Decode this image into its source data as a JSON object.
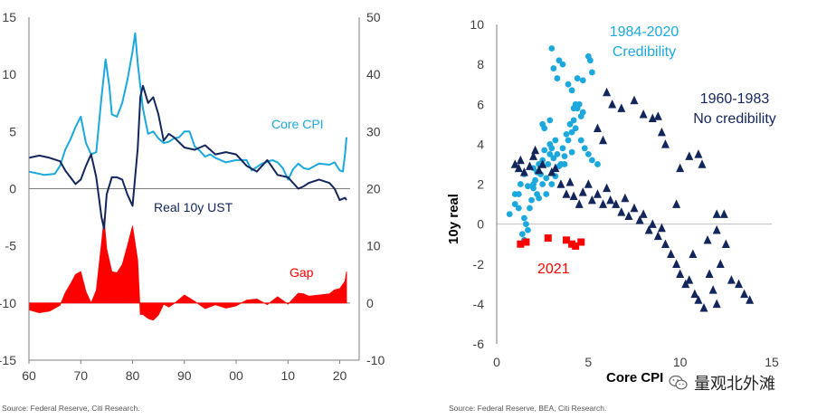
{
  "chart_data": [
    {
      "type": "line",
      "x_ticks": [
        "60",
        "70",
        "80",
        "90",
        "00",
        "10",
        "20"
      ],
      "left_axis": {
        "ticks": [
          15,
          10,
          5,
          0,
          -5,
          -10,
          -15
        ],
        "ylim": [
          -15,
          15
        ]
      },
      "right_axis": {
        "ticks": [
          50,
          40,
          30,
          20,
          10,
          0,
          -10
        ],
        "ylim": [
          -10,
          50
        ]
      },
      "xlim": [
        1960,
        2022
      ],
      "series": [
        {
          "name": "Core CPI",
          "color": "#1ba8dc",
          "axis": "left",
          "x": [
            1960,
            1963,
            1965,
            1966,
            1967,
            1968,
            1969,
            1970,
            1971,
            1972,
            1973,
            1974,
            1974.8,
            1975.5,
            1976,
            1977,
            1978,
            1979,
            1980,
            1980.5,
            1981,
            1982,
            1983,
            1984,
            1985,
            1986,
            1987,
            1988,
            1989,
            1990,
            1991,
            1992,
            1993,
            1994,
            1995,
            1996,
            1998,
            2000,
            2002,
            2003,
            2005,
            2007,
            2008,
            2009,
            2010,
            2011,
            2012,
            2013,
            2014,
            2016,
            2018,
            2019,
            2020,
            2020.6,
            2021,
            2021.3
          ],
          "y": [
            1.5,
            1.2,
            1.3,
            2.0,
            3.4,
            4.3,
            5.4,
            6.3,
            4.0,
            3.0,
            3.2,
            8.0,
            11.3,
            9.0,
            6.5,
            6.3,
            7.5,
            9.5,
            12.0,
            13.6,
            11.0,
            7.0,
            4.8,
            5.0,
            4.4,
            4.0,
            4.1,
            4.4,
            4.5,
            5.0,
            5.0,
            3.7,
            3.3,
            2.8,
            3.0,
            2.7,
            2.3,
            2.5,
            2.5,
            1.6,
            2.2,
            2.5,
            2.3,
            1.8,
            0.8,
            1.7,
            2.2,
            1.8,
            1.7,
            2.2,
            2.1,
            2.3,
            1.6,
            1.5,
            3.0,
            4.5
          ]
        },
        {
          "name": "Real 10y UST",
          "color": "#13265c",
          "axis": "left",
          "x": [
            1960,
            1962,
            1964,
            1966,
            1967,
            1968,
            1969,
            1970,
            1971,
            1972,
            1973,
            1974,
            1974.5,
            1975,
            1976,
            1977,
            1978,
            1979,
            1980,
            1981,
            1981.5,
            1982,
            1983,
            1984,
            1985,
            1986,
            1987,
            1988,
            1990,
            1992,
            1994,
            1996,
            1998,
            2000,
            2002,
            2004,
            2006,
            2008,
            2010,
            2012,
            2013,
            2014,
            2016,
            2018,
            2019,
            2020,
            2021,
            2021.3
          ],
          "y": [
            2.7,
            2.9,
            2.7,
            2.4,
            1.6,
            1.0,
            0.4,
            0.8,
            2.0,
            3.0,
            1.0,
            -2.5,
            -3.5,
            -0.5,
            1.0,
            1.0,
            0.8,
            -0.5,
            -1.5,
            3.5,
            8.0,
            9.0,
            7.5,
            8.0,
            6.5,
            4.2,
            4.8,
            4.5,
            3.6,
            3.4,
            3.8,
            3.0,
            3.2,
            3.0,
            2.0,
            1.5,
            2.5,
            1.2,
            1.0,
            0.0,
            0.2,
            0.5,
            0.8,
            0.5,
            0.0,
            -1.0,
            -0.8,
            -1.0
          ]
        },
        {
          "name": "Gap",
          "color": "#ff0000",
          "axis": "right",
          "fill": true,
          "x": [
            1960,
            1962,
            1964,
            1966,
            1967,
            1968,
            1969,
            1970,
            1971,
            1972,
            1973,
            1974,
            1974.5,
            1975,
            1976,
            1977,
            1978,
            1979,
            1980,
            1981,
            1981.5,
            1982,
            1983,
            1984,
            1985,
            1986,
            1987,
            1988,
            1990,
            1992,
            1994,
            1996,
            1998,
            2000,
            2002,
            2004,
            2006,
            2008,
            2010,
            2012,
            2013,
            2014,
            2016,
            2018,
            2019,
            2020,
            2021,
            2021.3
          ],
          "y": [
            -1.2,
            -1.7,
            -1.4,
            -0.4,
            1.8,
            3.3,
            5.0,
            5.5,
            2.0,
            0,
            2.2,
            10.5,
            14.8,
            9.5,
            5.5,
            5.3,
            6.7,
            10.0,
            13.5,
            7.5,
            -2.0,
            -2.0,
            -2.7,
            -3.0,
            -2.1,
            -0.2,
            -0.7,
            -0.1,
            1.4,
            0.3,
            -1.0,
            -0.3,
            -0.9,
            -0.5,
            0.5,
            0.7,
            -0.3,
            1.1,
            -0.2,
            1.7,
            1.6,
            1.2,
            1.4,
            1.6,
            2.3,
            2.5,
            3.8,
            5.5
          ]
        }
      ],
      "annotations": [
        "Core CPI",
        "Real 10y UST",
        "Gap"
      ],
      "source": "Source: Federal Reserve, Citi Research."
    },
    {
      "type": "scatter",
      "xlabel": "Core CPI",
      "ylabel": "10y real",
      "xlim": [
        0,
        15
      ],
      "ylim": [
        -6,
        10
      ],
      "x_ticks": [
        0,
        5,
        10,
        15
      ],
      "y_ticks": [
        10,
        8,
        6,
        4,
        2,
        0,
        -2,
        -4,
        -6
      ],
      "series": [
        {
          "name": "1984-2020 Credibility",
          "color": "#1ba8dc",
          "marker": "circle",
          "points": [
            [
              0.7,
              0.5
            ],
            [
              1.0,
              1.0
            ],
            [
              1.2,
              1.5
            ],
            [
              1.3,
              2.0
            ],
            [
              1.4,
              -0.5
            ],
            [
              1.5,
              -0.8
            ],
            [
              1.5,
              0.3
            ],
            [
              1.6,
              0.0
            ],
            [
              1.7,
              -0.3
            ],
            [
              1.8,
              0.8
            ],
            [
              1.9,
              1.2
            ],
            [
              2.0,
              2.0
            ],
            [
              2.0,
              1.8
            ],
            [
              2.1,
              2.2
            ],
            [
              2.2,
              2.6
            ],
            [
              2.2,
              1.5
            ],
            [
              2.3,
              3.0
            ],
            [
              2.4,
              2.5
            ],
            [
              2.5,
              3.2
            ],
            [
              2.6,
              3.7
            ],
            [
              2.7,
              2.3
            ],
            [
              2.8,
              3.0
            ],
            [
              2.9,
              4.0
            ],
            [
              2.9,
              3.5
            ],
            [
              3.0,
              2.0
            ],
            [
              3.1,
              3.3
            ],
            [
              3.2,
              4.2
            ],
            [
              3.3,
              3.5
            ],
            [
              3.4,
              2.9
            ],
            [
              3.5,
              3.0
            ],
            [
              3.6,
              3.8
            ],
            [
              3.7,
              3.4
            ],
            [
              3.8,
              4.5
            ],
            [
              3.9,
              4.2
            ],
            [
              4.0,
              5.0
            ],
            [
              4.1,
              4.6
            ],
            [
              4.2,
              5.2
            ],
            [
              4.3,
              4.8
            ],
            [
              4.4,
              5.8
            ],
            [
              4.5,
              6.0
            ],
            [
              4.6,
              5.4
            ],
            [
              4.7,
              5.6
            ],
            [
              4.2,
              5.8
            ],
            [
              4.3,
              6.0
            ],
            [
              4.7,
              7.2
            ],
            [
              4.4,
              7.3
            ],
            [
              5.1,
              8.2
            ],
            [
              5.0,
              8.4
            ],
            [
              5.2,
              7.6
            ],
            [
              3.4,
              8.2
            ],
            [
              3.0,
              8.8
            ],
            [
              3.1,
              7.8
            ],
            [
              3.6,
              8.0
            ],
            [
              3.3,
              7.3
            ],
            [
              3.9,
              7.0
            ],
            [
              4.1,
              6.7
            ],
            [
              2.6,
              4.8
            ],
            [
              2.9,
              5.2
            ],
            [
              2.5,
              5.0
            ],
            [
              4.8,
              3.8
            ],
            [
              5.0,
              3.5
            ],
            [
              5.2,
              3.2
            ],
            [
              5.5,
              3.0
            ],
            [
              4.6,
              4.2
            ],
            [
              3.7,
              3.0
            ],
            [
              4.1,
              3.6
            ],
            [
              1.2,
              0.8
            ],
            [
              1.5,
              2.5
            ],
            [
              1.0,
              1.5
            ],
            [
              1.7,
              1.9
            ],
            [
              2.0,
              2.8
            ],
            [
              2.3,
              1.3
            ],
            [
              2.5,
              2.0
            ],
            [
              2.7,
              1.5
            ],
            [
              3.0,
              3.8
            ],
            [
              3.2,
              2.4
            ]
          ]
        },
        {
          "name": "1960-1983 No credibility",
          "color": "#13265c",
          "marker": "triangle",
          "points": [
            [
              1.0,
              3.0
            ],
            [
              1.2,
              2.8
            ],
            [
              1.3,
              3.2
            ],
            [
              1.5,
              2.6
            ],
            [
              1.8,
              2.9
            ],
            [
              2.0,
              3.4
            ],
            [
              2.1,
              3.7
            ],
            [
              2.3,
              2.7
            ],
            [
              2.5,
              3.0
            ],
            [
              3.0,
              2.6
            ],
            [
              3.2,
              2.8
            ],
            [
              3.5,
              2.0
            ],
            [
              3.8,
              1.5
            ],
            [
              4.0,
              2.1
            ],
            [
              4.2,
              1.4
            ],
            [
              4.5,
              1.0
            ],
            [
              4.7,
              1.6
            ],
            [
              5.0,
              2.0
            ],
            [
              5.2,
              1.2
            ],
            [
              5.5,
              1.5
            ],
            [
              5.8,
              1.0
            ],
            [
              6.0,
              1.8
            ],
            [
              6.2,
              1.2
            ],
            [
              6.5,
              1.0
            ],
            [
              6.8,
              0.6
            ],
            [
              7.0,
              1.3
            ],
            [
              7.2,
              0.4
            ],
            [
              7.5,
              0.8
            ],
            [
              7.8,
              0.2
            ],
            [
              8.0,
              0.5
            ],
            [
              8.3,
              -0.3
            ],
            [
              8.5,
              0.0
            ],
            [
              8.8,
              -0.6
            ],
            [
              9.0,
              -0.2
            ],
            [
              9.2,
              -1.0
            ],
            [
              9.5,
              -1.5
            ],
            [
              9.8,
              -2.0
            ],
            [
              10.0,
              -2.5
            ],
            [
              10.3,
              -3.0
            ],
            [
              10.5,
              -2.8
            ],
            [
              10.8,
              -3.5
            ],
            [
              11.0,
              -3.8
            ],
            [
              11.3,
              -4.2
            ],
            [
              11.6,
              -2.5
            ],
            [
              11.8,
              -3.3
            ],
            [
              12.0,
              -4.0
            ],
            [
              12.2,
              -2.0
            ],
            [
              12.5,
              -1.0
            ],
            [
              12.0,
              -0.3
            ],
            [
              12.4,
              0.5
            ],
            [
              12.8,
              -2.8
            ],
            [
              13.2,
              -3.0
            ],
            [
              13.5,
              -3.5
            ],
            [
              13.8,
              -3.8
            ],
            [
              6.0,
              6.6
            ],
            [
              6.8,
              5.8
            ],
            [
              7.5,
              6.2
            ],
            [
              8.0,
              5.5
            ],
            [
              8.5,
              5.3
            ],
            [
              8.8,
              5.4
            ],
            [
              9.0,
              4.6
            ],
            [
              9.2,
              4.0
            ],
            [
              10.0,
              2.8
            ],
            [
              10.5,
              3.4
            ],
            [
              11.0,
              3.5
            ],
            [
              11.2,
              3.0
            ],
            [
              12.0,
              0.5
            ],
            [
              11.5,
              -0.8
            ],
            [
              10.7,
              -1.5
            ],
            [
              9.8,
              1.0
            ],
            [
              5.5,
              4.8
            ],
            [
              5.8,
              4.2
            ],
            [
              6.3,
              6.0
            ]
          ]
        },
        {
          "name": "2021",
          "color": "#ff0000",
          "marker": "square",
          "points": [
            [
              1.3,
              -1.0
            ],
            [
              1.6,
              -0.9
            ],
            [
              2.8,
              -0.7
            ],
            [
              3.8,
              -0.8
            ],
            [
              4.1,
              -1.0
            ],
            [
              4.3,
              -1.1
            ],
            [
              4.6,
              -0.9
            ]
          ]
        }
      ],
      "labels": {
        "s1a": "1984-2020",
        "s1b": "Credibility",
        "s2a": "1960-1983",
        "s2b": "No credibility",
        "s3": "2021"
      },
      "source": "Source: Federal Reserve, BEA, Citi Research."
    }
  ],
  "watermark": {
    "text": "量观北外滩",
    "icon": "wechat-icon"
  }
}
